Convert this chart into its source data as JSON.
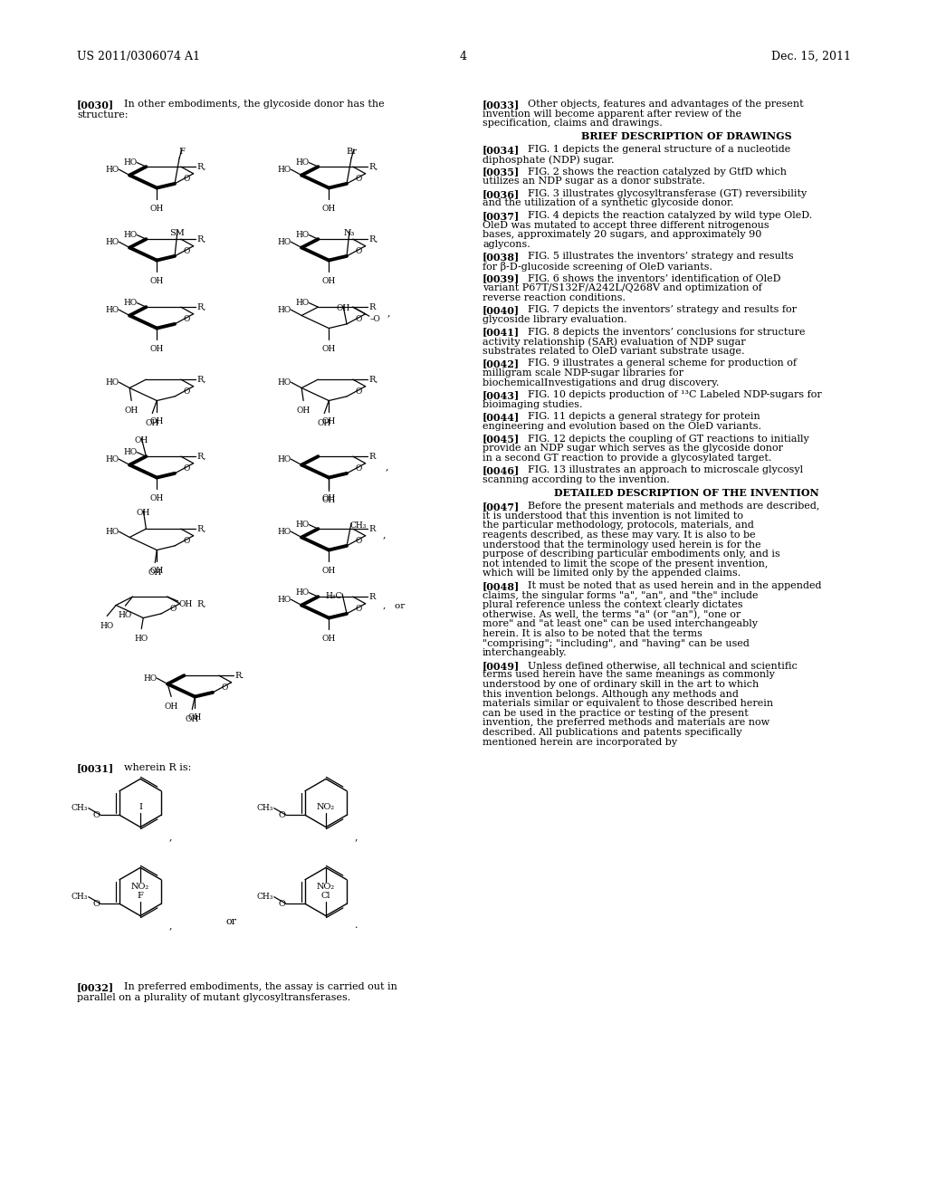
{
  "page_width": 10.24,
  "page_height": 13.2,
  "bg_color": "#ffffff",
  "header_left": "US 2011/0306074 A1",
  "header_center": "4",
  "header_right": "Dec. 15, 2011",
  "right_paragraphs": [
    {
      "tag": "[0033]",
      "text": "Other objects, features and advantages of the present invention will become apparent after review of the specification, claims and drawings.",
      "heading": false
    },
    {
      "tag": "BRIEF DESCRIPTION OF DRAWINGS",
      "text": "",
      "heading": true
    },
    {
      "tag": "[0034]",
      "text": "FIG. 1 depicts the general structure of a nucleotide diphosphate (NDP) sugar.",
      "heading": false
    },
    {
      "tag": "[0035]",
      "text": "FIG. 2 shows the reaction catalyzed by GtfD which utilizes an NDP sugar as a donor substrate.",
      "heading": false
    },
    {
      "tag": "[0036]",
      "text": "FIG. 3 illustrates glycosyltransferase (GT) reversibility and the utilization of a synthetic glycoside donor.",
      "heading": false
    },
    {
      "tag": "[0037]",
      "text": "FIG. 4 depicts the reaction catalyzed by wild type OleD. OleD was mutated to accept three different nitrogenous bases, approximately 20 sugars, and approximately 90 aglycons.",
      "heading": false
    },
    {
      "tag": "[0038]",
      "text": "FIG. 5 illustrates the inventors’ strategy and results for β-D-glucoside screening of OleD variants.",
      "heading": false
    },
    {
      "tag": "[0039]",
      "text": "FIG. 6 shows the inventors’ identification of OleD variant P67T/S132F/A242L/Q268V and optimization of reverse reaction conditions.",
      "heading": false
    },
    {
      "tag": "[0040]",
      "text": "FIG. 7 depicts the inventors’ strategy and results for glycoside library evaluation.",
      "heading": false
    },
    {
      "tag": "[0041]",
      "text": "FIG. 8 depicts the inventors’ conclusions for structure activity relationship (SAR) evaluation of NDP sugar substrates related to OleD variant substrate usage.",
      "heading": false
    },
    {
      "tag": "[0042]",
      "text": "FIG. 9 illustrates a general scheme for production of milligram scale NDP-sugar libraries for biochemicalInvestigations and drug discovery.",
      "heading": false
    },
    {
      "tag": "[0043]",
      "text": "FIG. 10 depicts production of ¹³C Labeled NDP-sugars for bioimaging studies.",
      "heading": false
    },
    {
      "tag": "[0044]",
      "text": "FIG. 11 depicts a general strategy for protein engineering and evolution based on the OleD variants.",
      "heading": false
    },
    {
      "tag": "[0045]",
      "text": "FIG. 12 depicts the coupling of GT reactions to initially provide an NDP sugar which serves as the glycoside donor in a second GT reaction to provide a glycosylated target.",
      "heading": false
    },
    {
      "tag": "[0046]",
      "text": "FIG. 13 illustrates an approach to microscale glycosyl scanning according to the invention.",
      "heading": false
    },
    {
      "tag": "DETAILED DESCRIPTION OF THE INVENTION",
      "text": "",
      "heading": true
    },
    {
      "tag": "[0047]",
      "text": "Before the present materials and methods are described, it is understood that this invention is not limited to the particular methodology, protocols, materials, and reagents described, as these may vary. It is also to be understood that the terminology used herein is for the purpose of describing particular embodiments only, and is not intended to limit the scope of the present invention, which will be limited only by the appended claims.",
      "heading": false
    },
    {
      "tag": "[0048]",
      "text": "It must be noted that as used herein and in the appended claims, the singular forms \"a\", \"an\", and \"the\" include plural reference unless the context clearly dictates otherwise. As well, the terms \"a\" (or \"an\"), \"one or more\" and \"at least one\" can be used interchangeably herein. It is also to be noted that the terms \"comprising\"; \"including\", and \"having\" can be used interchangeably.",
      "heading": false
    },
    {
      "tag": "[0049]",
      "text": "Unless defined otherwise, all technical and scientific terms used herein have the same meanings as commonly understood by one of ordinary skill in the art to which this invention belongs. Although any methods and materials similar or equivalent to those described herein can be used in the practice or testing of the present invention, the preferred methods and materials are now described. All publications and patents specifically mentioned herein are incorporated by",
      "heading": false
    }
  ]
}
